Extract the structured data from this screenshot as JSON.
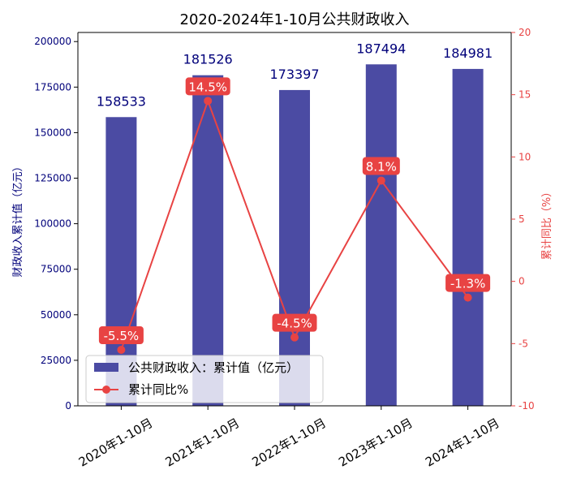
{
  "chart_data": {
    "type": "bar",
    "title": "2020-2024年1-10月公共财政收入",
    "categories": [
      "2020年1-10月",
      "2021年1-10月",
      "2022年1-10月",
      "2023年1-10月",
      "2024年1-10月"
    ],
    "series": [
      {
        "name": "公共财政收入：累计值（亿元）",
        "type": "bar",
        "axis": "left",
        "values": [
          158533,
          181526,
          173397,
          187494,
          184981
        ],
        "labels": [
          "158533",
          "181526",
          "173397",
          "187494",
          "184981"
        ],
        "color": "#4b4ba3"
      },
      {
        "name": "累计同比%",
        "type": "line",
        "axis": "right",
        "values": [
          -5.5,
          14.5,
          -4.5,
          8.1,
          -1.3
        ],
        "labels": [
          "-5.5%",
          "14.5%",
          "-4.5%",
          "8.1%",
          "-1.3%"
        ],
        "color": "#e84343"
      }
    ],
    "ylabel": "财政收入累计值（亿元）",
    "ylabel_right": "累计同比（%）",
    "ylim": [
      0,
      205000
    ],
    "ylim_right": [
      -10,
      20
    ],
    "yticks": [
      "0",
      "25000",
      "50000",
      "75000",
      "100000",
      "125000",
      "150000",
      "175000",
      "200000"
    ],
    "yticks_right": [
      "-10",
      "-5",
      "0",
      "5",
      "10",
      "15",
      "20"
    ],
    "legend_position": "lower-left",
    "grid": false
  }
}
